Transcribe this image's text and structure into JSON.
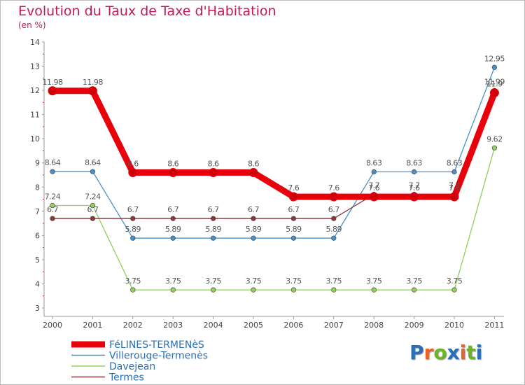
{
  "title": "Evolution du Taux de Taxe d'Habitation",
  "subtitle": "(en %)",
  "logo_text": "Proxiti",
  "logo_colors": [
    "#2a6fb6",
    "#e8622c",
    "#6bb42a",
    "#2a6fb6",
    "#e8622c",
    "#6bb42a",
    "#2a6fb6"
  ],
  "chart_data": {
    "type": "line",
    "title": "Evolution du Taux de Taxe d'Habitation",
    "ylabel": "(en %)",
    "xlabel": "",
    "ylim": [
      3,
      14
    ],
    "yticks": [
      3,
      4,
      5,
      6,
      7,
      8,
      9,
      10,
      11,
      12,
      13,
      14
    ],
    "grid": false,
    "legend_position": "bottom-left",
    "x": [
      "2000",
      "2001",
      "2002",
      "2003",
      "2004",
      "2005",
      "2006",
      "2007",
      "2008",
      "2009",
      "2010",
      "2011"
    ],
    "series": [
      {
        "name": "Villerouge-Termenès",
        "color": "#4a90c8",
        "values": [
          8.64,
          8.64,
          5.89,
          5.89,
          5.89,
          5.89,
          5.89,
          5.89,
          8.63,
          8.63,
          8.63,
          12.95
        ],
        "labels": [
          "8.64",
          "8.64",
          "5.89",
          "5.89",
          "5.89",
          "5.89",
          "5.89",
          "5.89",
          "8.63",
          "8.63",
          "8.63",
          "12.95"
        ]
      },
      {
        "name": "Davejean",
        "color": "#8ed05a",
        "values": [
          7.24,
          7.24,
          3.75,
          3.75,
          3.75,
          3.75,
          3.75,
          3.75,
          3.75,
          3.75,
          3.75,
          9.62
        ],
        "labels": [
          "7.24",
          "7.24",
          "3.75",
          "3.75",
          "3.75",
          "3.75",
          "3.75",
          "3.75",
          "3.75",
          "3.75",
          "3.75",
          "9.62"
        ]
      },
      {
        "name": "Termes",
        "color": "#8b3a3a",
        "values": [
          6.7,
          6.7,
          6.7,
          6.7,
          6.7,
          6.7,
          6.7,
          6.7,
          7.7,
          7.7,
          7.7,
          11.99
        ],
        "labels": [
          "6.7",
          "6.7",
          "6.7",
          "6.7",
          "6.7",
          "6.7",
          "6.7",
          "6.7",
          "7.7",
          "7.7",
          "7.7",
          "11.99"
        ]
      },
      {
        "name": "FéLINES-TERMENèS",
        "color": "#e8000b",
        "values": [
          11.98,
          11.98,
          8.6,
          8.6,
          8.6,
          8.6,
          7.6,
          7.6,
          7.6,
          7.6,
          7.6,
          11.9
        ],
        "labels": [
          "11.98",
          "11.98",
          "8.6",
          "8.6",
          "8.6",
          "8.6",
          "7.6",
          "7.6",
          "7.6",
          "7.6",
          "7.6",
          "11.9"
        ]
      }
    ],
    "legend": [
      "FéLINES-TERMENèS",
      "Villerouge-Termenès",
      "Davejean",
      "Termes"
    ]
  }
}
